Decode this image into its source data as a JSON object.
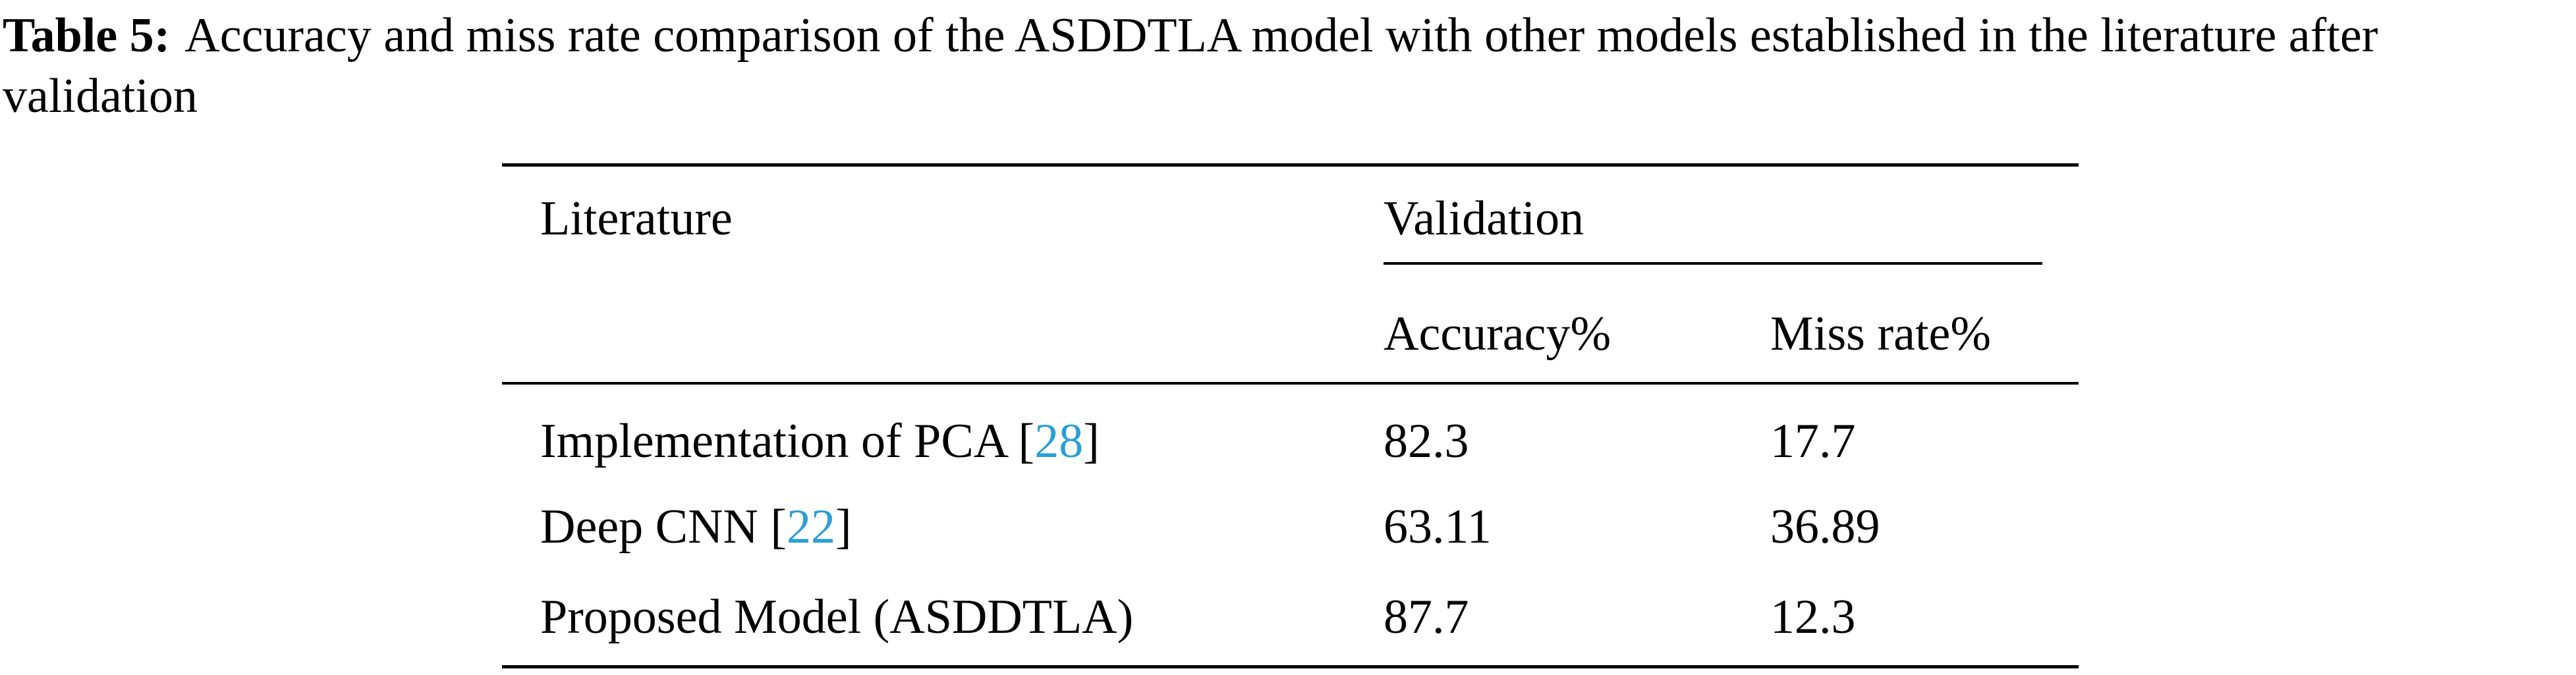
{
  "caption": {
    "label": "Table 5:",
    "text": "Accuracy and miss rate comparison of the ASDDTLA model with other models established in the literature after validation"
  },
  "table": {
    "header": {
      "literature": "Literature",
      "group": "Validation",
      "columns": [
        "Accuracy%",
        "Miss rate%"
      ]
    },
    "rows": [
      {
        "literature": [
          "Implementation of PCA [",
          "28",
          "]"
        ],
        "values": [
          82.3,
          17.7
        ]
      },
      {
        "literature": [
          "Deep CNN [",
          "22",
          "]"
        ],
        "values": [
          63.11,
          36.89
        ]
      },
      {
        "literature": [
          "Proposed Model (ASDDTLA)"
        ],
        "values": [
          87.7,
          12.3
        ]
      }
    ]
  }
}
